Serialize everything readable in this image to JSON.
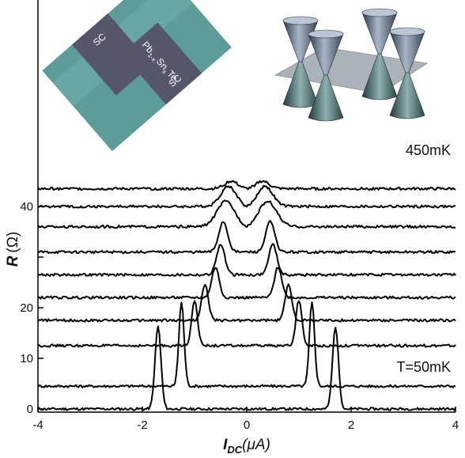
{
  "chart_data": {
    "type": "line",
    "title": "",
    "xlabel": {
      "symbol": "I",
      "subscript": "DC",
      "unit": "(μA)"
    },
    "ylabel": {
      "symbol": "R",
      "unit": "(Ω)"
    },
    "xlim": [
      -4,
      4
    ],
    "ylim": [
      -0.5,
      75
    ],
    "x_ticks": [
      -4,
      -2,
      0,
      2,
      4
    ],
    "y_ticks": [
      0,
      10,
      20,
      30,
      40
    ],
    "y_tick_labels": [
      "0",
      "10",
      "20",
      "",
      "40"
    ],
    "grid": false,
    "annotations": {
      "top_temperature": "450mK",
      "bottom_temperature": "T=50mK"
    },
    "inset_left": {
      "kind": "device micrograph",
      "electrode_label": "SC",
      "material": "Pb",
      "material_sub1": "1-x",
      "material_mid": "Sn",
      "material_sub2": "x",
      "material_end": "Te"
    },
    "inset_right": {
      "kind": "Dirac cone band structure",
      "cones": 4
    },
    "curve_color": "#000000",
    "series": [
      {
        "baseline": 0.0,
        "peak": 1.7,
        "peak_height": 16.3,
        "inner": 0.95,
        "inner_level": 0.0
      },
      {
        "baseline": 4.5,
        "peak": 1.25,
        "peak_height": 16.5,
        "inner": 0.8,
        "inner_level": 4.5
      },
      {
        "baseline": 12.5,
        "peak": 1.0,
        "peak_height": 9.0,
        "inner": 0.72,
        "inner_level": 12.5
      },
      {
        "baseline": 17.5,
        "peak": 0.8,
        "peak_height": 7.0,
        "inner": 0.6,
        "inner_level": 17.5
      },
      {
        "baseline": 22.0,
        "peak": 0.6,
        "peak_height": 6.0,
        "inner": 0.48,
        "inner_level": 22.0
      },
      {
        "baseline": 26.5,
        "peak": 0.5,
        "peak_height": 6.0,
        "inner": 0.32,
        "inner_level": 26.5
      },
      {
        "baseline": 31.0,
        "peak": 0.45,
        "peak_height": 6.0,
        "inner": 0.18,
        "inner_level": 31.0
      },
      {
        "baseline": 36.0,
        "peak": 0.4,
        "peak_height": 5.0,
        "inner": 0.0,
        "inner_level": 37.0
      },
      {
        "baseline": 40.0,
        "peak": 0.35,
        "peak_height": 4.0,
        "inner": 0.0,
        "inner_level": 41.5
      },
      {
        "baseline": 43.5,
        "peak": 0.3,
        "peak_height": 1.5,
        "inner": 0.0,
        "inner_level": 44.0
      }
    ]
  }
}
